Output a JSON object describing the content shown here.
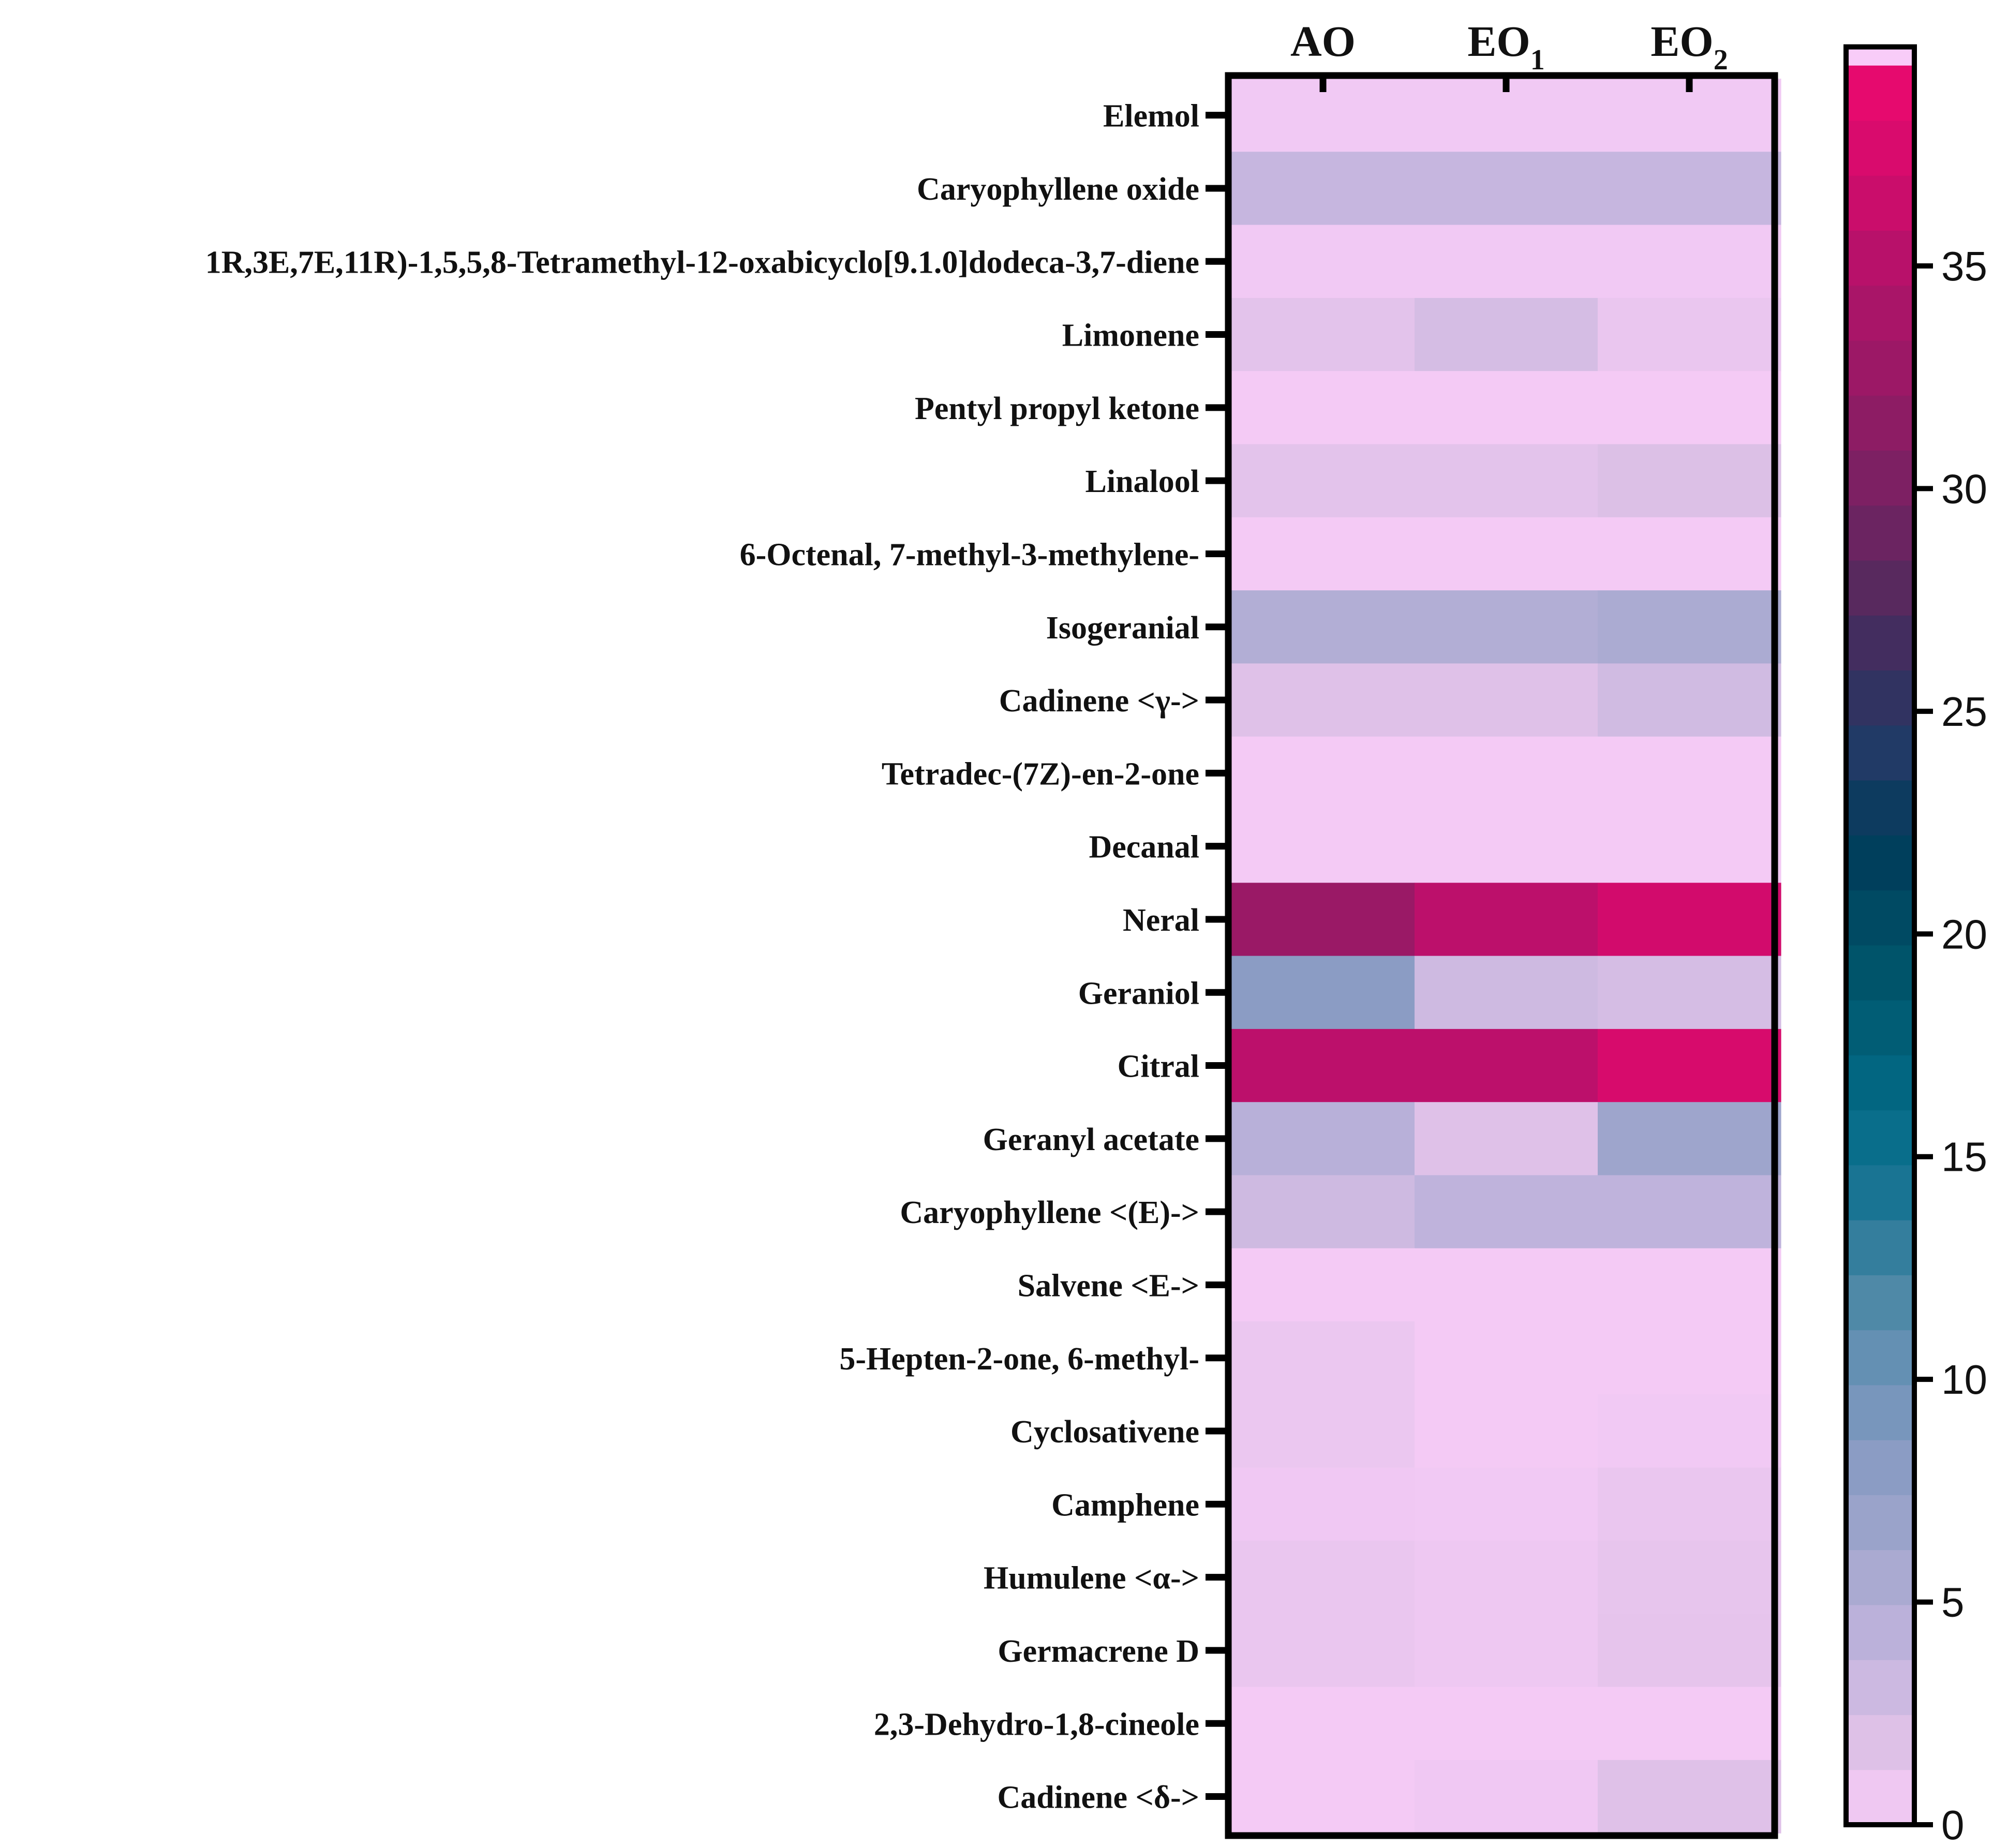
{
  "chart_data": {
    "type": "heatmap",
    "title": "",
    "columns": [
      {
        "main": "AO",
        "sub": ""
      },
      {
        "main": "EO",
        "sub": "1"
      },
      {
        "main": "EO",
        "sub": "2"
      }
    ],
    "rows": [
      "Elemol",
      "Caryophyllene oxide",
      "1R,3E,7E,11R)-1,5,5,8-Tetramethyl-12-oxabicyclo[9.1.0]dodeca-3,7-diene",
      "Limonene",
      "Pentyl propyl ketone",
      "Linalool",
      "6-Octenal, 7-methyl-3-methylene-",
      "Isogeranial",
      "Cadinene <γ->",
      "Tetradec-(7Z)-en-2-one",
      "Decanal",
      "Neral",
      "Geraniol",
      "Citral",
      "Geranyl acetate",
      "Caryophyllene <(E)->",
      "Salvene <E->",
      "5-Hepten-2-one, 6-methyl-",
      "Cyclosativene",
      "Camphene",
      "Humulene <α->",
      "Germacrene D",
      "2,3-Dehydro-1,8-cineole",
      "Cadinene <δ->"
    ],
    "values": [
      [
        0.5,
        0.5,
        0.5
      ],
      [
        3.5,
        3.5,
        3.5
      ],
      [
        0.5,
        0.5,
        0.5
      ],
      [
        1.5,
        2.5,
        1.0
      ],
      [
        0.3,
        0.3,
        0.3
      ],
      [
        1.5,
        1.5,
        2.0
      ],
      [
        0.3,
        0.3,
        0.3
      ],
      [
        5.0,
        5.0,
        5.5
      ],
      [
        1.8,
        1.8,
        2.8
      ],
      [
        0.3,
        0.3,
        0.3
      ],
      [
        0.3,
        0.3,
        0.3
      ],
      [
        32.5,
        35.5,
        37.0
      ],
      [
        8.0,
        3.0,
        2.5
      ],
      [
        35.5,
        35.5,
        37.5
      ],
      [
        4.5,
        1.8,
        6.5
      ],
      [
        3.0,
        4.0,
        4.0
      ],
      [
        0.3,
        0.3,
        0.3
      ],
      [
        0.9,
        0.3,
        0.3
      ],
      [
        0.9,
        0.3,
        0.5
      ],
      [
        0.6,
        0.5,
        1.0
      ],
      [
        1.0,
        0.7,
        1.2
      ],
      [
        1.0,
        0.7,
        1.3
      ],
      [
        0.3,
        0.3,
        0.3
      ],
      [
        0.3,
        0.6,
        1.8
      ]
    ],
    "colorbar": {
      "min": 0,
      "max": 39.5,
      "ticks": [
        0,
        5,
        10,
        15,
        20,
        25,
        30,
        35
      ],
      "bins": 32,
      "top_cap": true
    },
    "colormap_stops": [
      {
        "v": 0,
        "color": "#f8ccf8"
      },
      {
        "v": 2,
        "color": "#dcc0e6"
      },
      {
        "v": 4,
        "color": "#bfb3dc"
      },
      {
        "v": 6,
        "color": "#a4a8ce"
      },
      {
        "v": 8,
        "color": "#8b9cc4"
      },
      {
        "v": 10,
        "color": "#6c93b7"
      },
      {
        "v": 12,
        "color": "#4a87a5"
      },
      {
        "v": 14,
        "color": "#1c7594"
      },
      {
        "v": 16,
        "color": "#026b87"
      },
      {
        "v": 19,
        "color": "#00556b"
      },
      {
        "v": 22,
        "color": "#003c5a"
      },
      {
        "v": 24,
        "color": "#203a66"
      },
      {
        "v": 26,
        "color": "#3a2f5f"
      },
      {
        "v": 28,
        "color": "#5c285e"
      },
      {
        "v": 30,
        "color": "#7a2163"
      },
      {
        "v": 32,
        "color": "#941a65"
      },
      {
        "v": 35,
        "color": "#b5126a"
      },
      {
        "v": 37,
        "color": "#d20b6c"
      },
      {
        "v": 39.5,
        "color": "#ec0a6e"
      }
    ]
  }
}
